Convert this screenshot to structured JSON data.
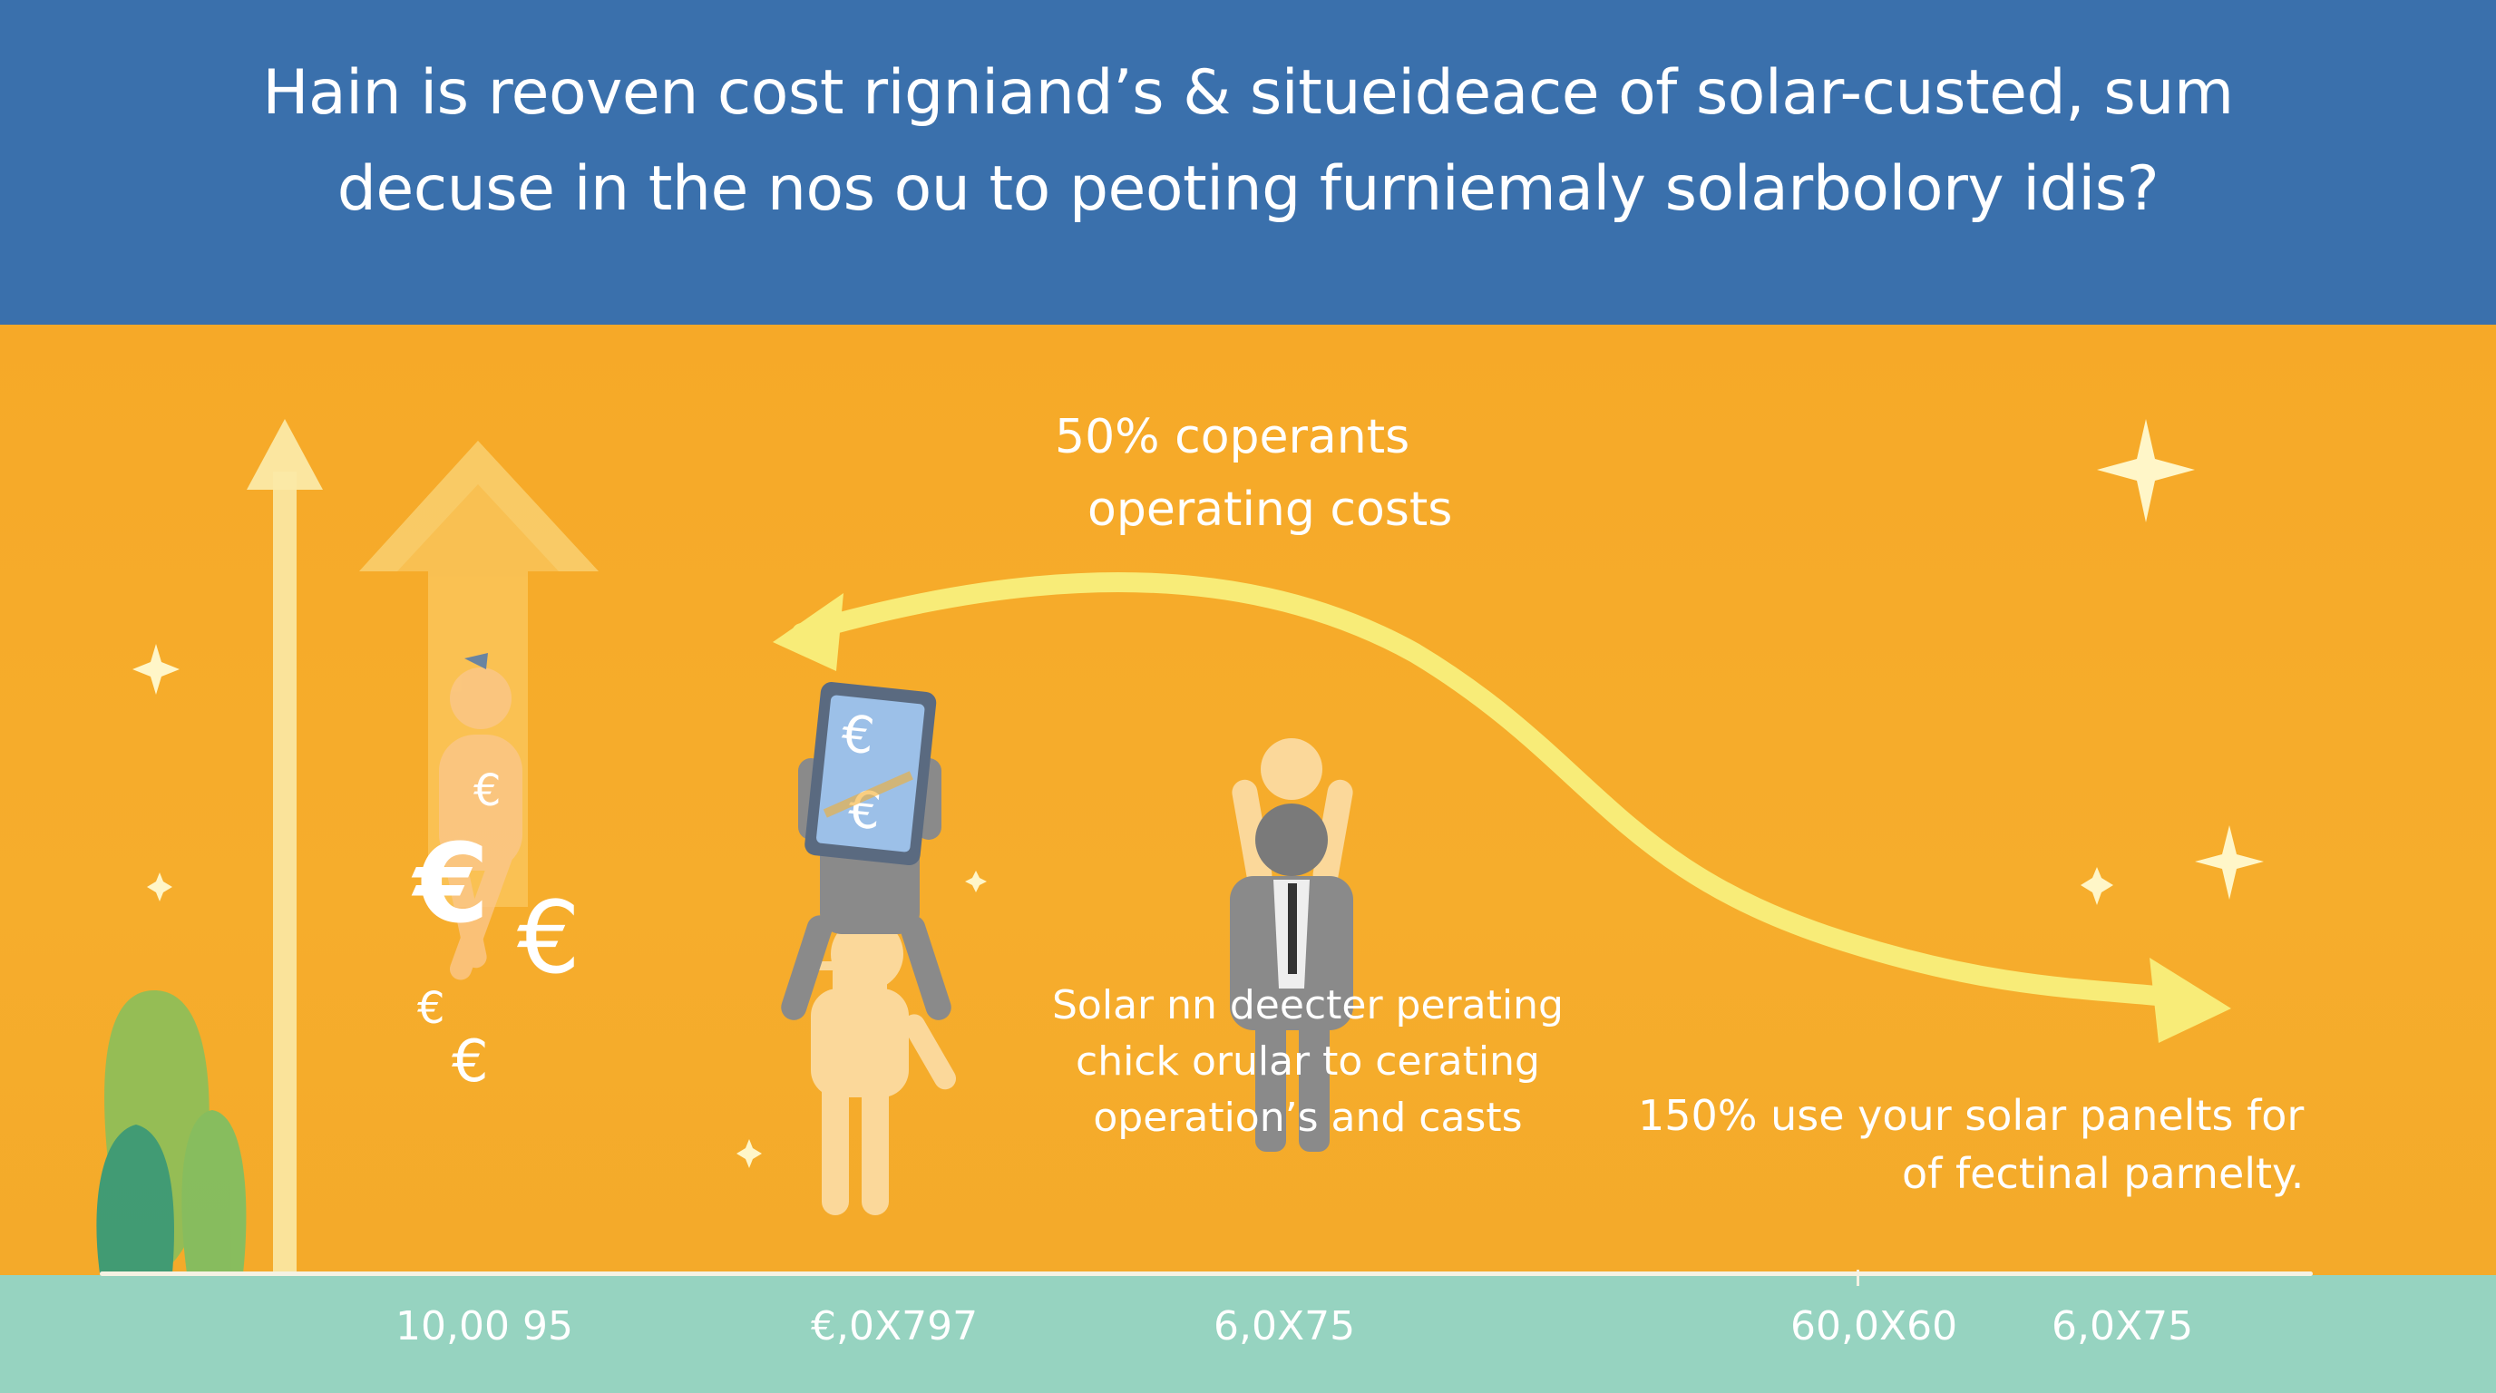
{
  "header": {
    "title_line1": "Hain is reoven cost rigniand’s & situeideace of solar-custed, sum",
    "title_line2": "decuse in the nos ou to peoting furniemaly solarbolory idis?"
  },
  "annotations": {
    "top_line1": "50% coperants",
    "top_line2": "operating costs",
    "middle_line1": "Solar nn deecter perating",
    "middle_line2": "chick orular to cerating",
    "middle_line3": "operation’s and casts",
    "right_line1": "150% use your solar panelts for",
    "right_line2": "of fectinal parnelty."
  },
  "axis": {
    "labels": [
      "10,00 95",
      "€,0X797",
      "6,0X75",
      "60,0X60",
      "6,0X75"
    ]
  },
  "icons": {
    "currency_symbol": "€"
  },
  "colors": {
    "header_bg": "#3a70ac",
    "scene_bg": "#f6ab28",
    "footer_bg": "#96d3c0",
    "curve": "#f8ec78",
    "figure_light": "#fbd89a",
    "figure_gray": "#8a8a8a"
  }
}
